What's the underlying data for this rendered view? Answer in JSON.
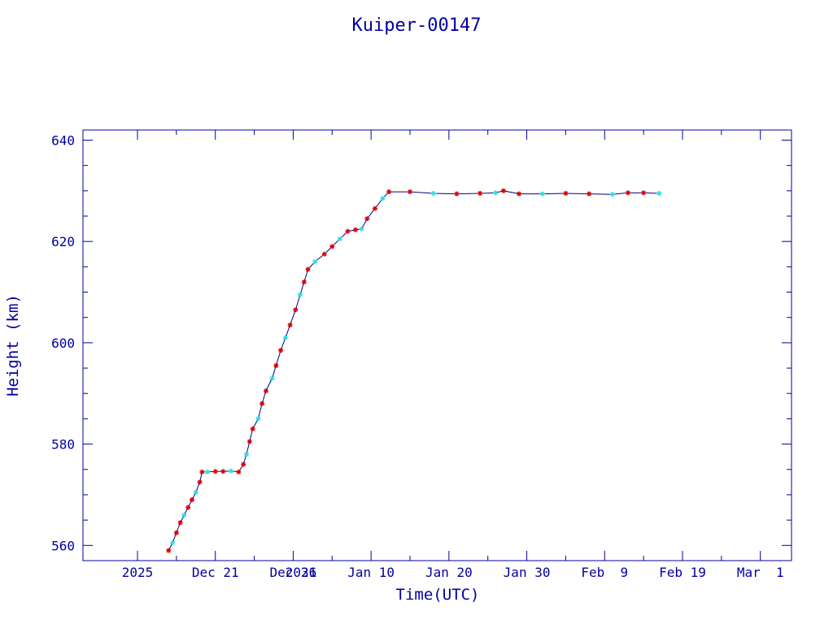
{
  "chart_data": {
    "type": "line",
    "title": "Kuiper-00147",
    "xlabel": "Time(UTC)",
    "ylabel": "Height (km)",
    "ylim": [
      557,
      642
    ],
    "xlim": [
      "2025-12-04",
      "2026-03-05"
    ],
    "y_ticks": [
      560,
      580,
      600,
      620,
      640
    ],
    "x_ticks": [
      {
        "date": "2025-12-11",
        "label": "2025"
      },
      {
        "date": "2025-12-21",
        "label": "Dec 21"
      },
      {
        "date": "2025-12-31",
        "label": "Dec 31"
      },
      {
        "date": "2026-01-01",
        "label": "2026"
      },
      {
        "date": "2026-01-10",
        "label": "Jan 10"
      },
      {
        "date": "2026-01-20",
        "label": "Jan 20"
      },
      {
        "date": "2026-01-30",
        "label": "Jan 30"
      },
      {
        "date": "2026-02-09",
        "label": "Feb  9"
      },
      {
        "date": "2026-02-19",
        "label": "Feb 19"
      },
      {
        "date": "2026-03-01",
        "label": "Mar  1"
      }
    ],
    "colors": {
      "axis": "#0000a0",
      "line": "#00008b",
      "marker_a": "#dd0000",
      "marker_b": "#33dddd"
    },
    "grid": false,
    "series": [
      {
        "points": [
          [
            "2025-12-15",
            559.0
          ],
          [
            "2025-12-15.5",
            560.5
          ],
          [
            "2025-12-16",
            562.5
          ],
          [
            "2025-12-16.5",
            564.5
          ],
          [
            "2025-12-17",
            566.0
          ],
          [
            "2025-12-17.5",
            567.5
          ],
          [
            "2025-12-18",
            569.0
          ],
          [
            "2025-12-18.5",
            570.5
          ],
          [
            "2025-12-19",
            572.5
          ],
          [
            "2025-12-19.3",
            574.5
          ],
          [
            "2025-12-20",
            574.5
          ],
          [
            "2025-12-21",
            574.6
          ],
          [
            "2025-12-22",
            574.6
          ],
          [
            "2025-12-23",
            574.7
          ],
          [
            "2025-12-24",
            574.5
          ],
          [
            "2025-12-24.6",
            576.0
          ],
          [
            "2025-12-25",
            578.0
          ],
          [
            "2025-12-25.4",
            580.5
          ],
          [
            "2025-12-25.8",
            583.0
          ],
          [
            "2025-12-26.5",
            585.0
          ],
          [
            "2025-12-27",
            588.0
          ],
          [
            "2025-12-27.5",
            590.5
          ],
          [
            "2025-12-28.3",
            593.0
          ],
          [
            "2025-12-28.8",
            595.5
          ],
          [
            "2025-12-29.4",
            598.5
          ],
          [
            "2025-12-30",
            601.0
          ],
          [
            "2025-12-30.6",
            603.5
          ],
          [
            "2025-12-31.3",
            606.5
          ],
          [
            "2025-12-31.9",
            609.5
          ],
          [
            "2026-01-01.4",
            612.0
          ],
          [
            "2026-01-01.9",
            614.5
          ],
          [
            "2026-01-02.8",
            616.0
          ],
          [
            "2026-01-04",
            617.5
          ],
          [
            "2026-01-05",
            619.0
          ],
          [
            "2026-01-06",
            620.5
          ],
          [
            "2026-01-07",
            622.0
          ],
          [
            "2026-01-08",
            622.3
          ],
          [
            "2026-01-08.8",
            622.5
          ],
          [
            "2026-01-09.5",
            624.5
          ],
          [
            "2026-01-10.5",
            626.5
          ],
          [
            "2026-01-11.5",
            628.5
          ],
          [
            "2026-01-12.3",
            629.8
          ],
          [
            "2026-01-15",
            629.8
          ],
          [
            "2026-01-18",
            629.5
          ],
          [
            "2026-01-21",
            629.4
          ],
          [
            "2026-01-24",
            629.5
          ],
          [
            "2026-01-26",
            629.6
          ],
          [
            "2026-01-27",
            630.0
          ],
          [
            "2026-01-29",
            629.4
          ],
          [
            "2026-02-01",
            629.4
          ],
          [
            "2026-02-04",
            629.5
          ],
          [
            "2026-02-07",
            629.4
          ],
          [
            "2026-02-10",
            629.3
          ],
          [
            "2026-02-12",
            629.6
          ],
          [
            "2026-02-14",
            629.6
          ],
          [
            "2026-02-16",
            629.5
          ]
        ]
      }
    ]
  }
}
